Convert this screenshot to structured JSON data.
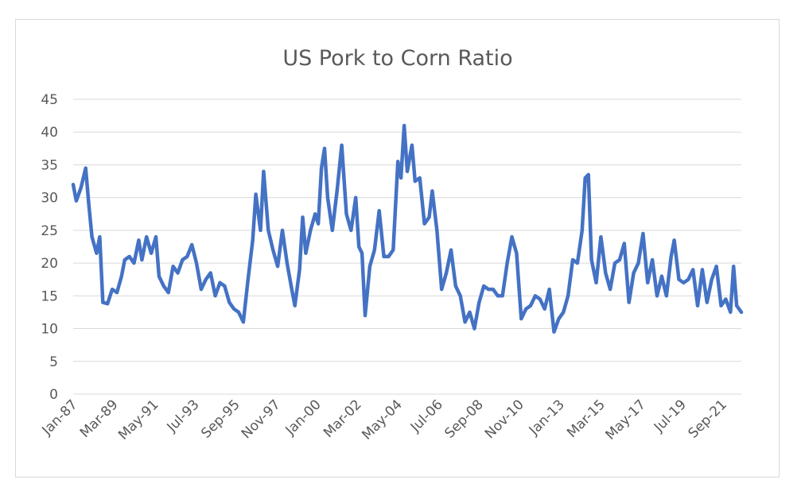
{
  "chart_data": {
    "type": "line",
    "title": "US Pork to Corn Ratio",
    "xlabel": "",
    "ylabel": "",
    "ylim": [
      0,
      45
    ],
    "yticks": [
      0,
      5,
      10,
      15,
      20,
      25,
      30,
      35,
      40,
      45
    ],
    "xticks": [
      "Jan-87",
      "Mar-89",
      "May-91",
      "Jul-93",
      "Sep-95",
      "Nov-97",
      "Jan-00",
      "Mar-02",
      "May-04",
      "Jul-06",
      "Sep-08",
      "Nov-10",
      "Jan-13",
      "Mar-15",
      "May-17",
      "Jul-19",
      "Sep-21"
    ],
    "grid": true,
    "legend": "none",
    "series_color": "#4472c4",
    "series": [
      {
        "name": "",
        "points": [
          [
            "1987-01",
            32.0
          ],
          [
            "1987-03",
            29.5
          ],
          [
            "1987-06",
            31.5
          ],
          [
            "1987-09",
            34.5
          ],
          [
            "1987-11",
            29.0
          ],
          [
            "1988-01",
            24.0
          ],
          [
            "1988-04",
            21.5
          ],
          [
            "1988-06",
            24.0
          ],
          [
            "1988-08",
            14.0
          ],
          [
            "1988-11",
            13.8
          ],
          [
            "1989-02",
            16.0
          ],
          [
            "1989-05",
            15.5
          ],
          [
            "1989-08",
            18.0
          ],
          [
            "1989-10",
            20.5
          ],
          [
            "1990-01",
            21.0
          ],
          [
            "1990-04",
            20.0
          ],
          [
            "1990-07",
            23.5
          ],
          [
            "1990-09",
            20.5
          ],
          [
            "1990-12",
            24.0
          ],
          [
            "1991-03",
            21.5
          ],
          [
            "1991-06",
            24.0
          ],
          [
            "1991-08",
            18.0
          ],
          [
            "1991-11",
            16.5
          ],
          [
            "1992-02",
            15.5
          ],
          [
            "1992-05",
            19.5
          ],
          [
            "1992-08",
            18.5
          ],
          [
            "1992-11",
            20.5
          ],
          [
            "1993-02",
            21.0
          ],
          [
            "1993-05",
            22.8
          ],
          [
            "1993-08",
            20.0
          ],
          [
            "1993-11",
            16.0
          ],
          [
            "1994-02",
            17.5
          ],
          [
            "1994-05",
            18.5
          ],
          [
            "1994-08",
            15.0
          ],
          [
            "1994-11",
            17.0
          ],
          [
            "1995-02",
            16.5
          ],
          [
            "1995-05",
            14.0
          ],
          [
            "1995-08",
            13.0
          ],
          [
            "1995-11",
            12.5
          ],
          [
            "1996-02",
            11.0
          ],
          [
            "1996-05",
            17.5
          ],
          [
            "1996-08",
            23.5
          ],
          [
            "1996-10",
            30.5
          ],
          [
            "1997-01",
            25.0
          ],
          [
            "1997-03",
            34.0
          ],
          [
            "1997-06",
            25.0
          ],
          [
            "1997-09",
            22.0
          ],
          [
            "1997-12",
            19.5
          ],
          [
            "1998-03",
            25.0
          ],
          [
            "1998-06",
            20.0
          ],
          [
            "1998-09",
            16.0
          ],
          [
            "1998-11",
            13.5
          ],
          [
            "1999-02",
            19.0
          ],
          [
            "1999-04",
            27.0
          ],
          [
            "1999-06",
            21.5
          ],
          [
            "1999-09",
            25.0
          ],
          [
            "1999-12",
            27.5
          ],
          [
            "2000-02",
            26.0
          ],
          [
            "2000-04",
            34.5
          ],
          [
            "2000-06",
            37.5
          ],
          [
            "2000-08",
            30.0
          ],
          [
            "2000-11",
            25.0
          ],
          [
            "2001-02",
            31.0
          ],
          [
            "2001-05",
            38.0
          ],
          [
            "2001-08",
            27.5
          ],
          [
            "2001-11",
            25.0
          ],
          [
            "2002-02",
            30.0
          ],
          [
            "2002-04",
            22.5
          ],
          [
            "2002-06",
            21.5
          ],
          [
            "2002-08",
            12.0
          ],
          [
            "2002-11",
            19.5
          ],
          [
            "2003-02",
            22.0
          ],
          [
            "2003-05",
            28.0
          ],
          [
            "2003-08",
            21.0
          ],
          [
            "2003-11",
            21.0
          ],
          [
            "2004-02",
            22.0
          ],
          [
            "2004-05",
            35.5
          ],
          [
            "2004-07",
            33.0
          ],
          [
            "2004-09",
            41.0
          ],
          [
            "2004-11",
            34.0
          ],
          [
            "2005-02",
            38.0
          ],
          [
            "2005-04",
            32.5
          ],
          [
            "2005-07",
            33.0
          ],
          [
            "2005-10",
            26.0
          ],
          [
            "2006-01",
            27.0
          ],
          [
            "2006-03",
            31.0
          ],
          [
            "2006-06",
            25.0
          ],
          [
            "2006-09",
            16.0
          ],
          [
            "2006-12",
            18.5
          ],
          [
            "2007-03",
            22.0
          ],
          [
            "2007-06",
            16.5
          ],
          [
            "2007-09",
            15.0
          ],
          [
            "2007-12",
            11.0
          ],
          [
            "2008-03",
            12.5
          ],
          [
            "2008-06",
            10.0
          ],
          [
            "2008-09",
            14.0
          ],
          [
            "2008-12",
            16.5
          ],
          [
            "2009-03",
            16.0
          ],
          [
            "2009-06",
            16.0
          ],
          [
            "2009-09",
            15.0
          ],
          [
            "2009-12",
            15.0
          ],
          [
            "2010-03",
            20.0
          ],
          [
            "2010-06",
            24.0
          ],
          [
            "2010-09",
            21.5
          ],
          [
            "2010-12",
            11.5
          ],
          [
            "2011-03",
            13.0
          ],
          [
            "2011-06",
            13.5
          ],
          [
            "2011-09",
            15.0
          ],
          [
            "2011-12",
            14.5
          ],
          [
            "2012-03",
            13.0
          ],
          [
            "2012-06",
            16.0
          ],
          [
            "2012-09",
            9.5
          ],
          [
            "2012-12",
            11.5
          ],
          [
            "2013-03",
            12.5
          ],
          [
            "2013-06",
            15.0
          ],
          [
            "2013-09",
            20.5
          ],
          [
            "2013-12",
            20.0
          ],
          [
            "2014-03",
            25.0
          ],
          [
            "2014-05",
            33.0
          ],
          [
            "2014-07",
            33.5
          ],
          [
            "2014-09",
            20.5
          ],
          [
            "2014-12",
            17.0
          ],
          [
            "2015-03",
            24.0
          ],
          [
            "2015-06",
            18.5
          ],
          [
            "2015-09",
            16.0
          ],
          [
            "2015-12",
            20.0
          ],
          [
            "2016-03",
            20.5
          ],
          [
            "2016-06",
            23.0
          ],
          [
            "2016-09",
            14.0
          ],
          [
            "2016-12",
            18.5
          ],
          [
            "2017-03",
            20.0
          ],
          [
            "2017-06",
            24.5
          ],
          [
            "2017-09",
            17.0
          ],
          [
            "2017-12",
            20.5
          ],
          [
            "2018-03",
            15.0
          ],
          [
            "2018-06",
            18.0
          ],
          [
            "2018-09",
            15.0
          ],
          [
            "2018-12",
            21.0
          ],
          [
            "2019-02",
            23.5
          ],
          [
            "2019-05",
            17.5
          ],
          [
            "2019-08",
            17.0
          ],
          [
            "2019-11",
            17.5
          ],
          [
            "2020-02",
            19.0
          ],
          [
            "2020-05",
            13.5
          ],
          [
            "2020-08",
            19.0
          ],
          [
            "2020-11",
            14.0
          ],
          [
            "2021-02",
            17.5
          ],
          [
            "2021-05",
            19.5
          ],
          [
            "2021-08",
            13.5
          ],
          [
            "2021-11",
            14.5
          ],
          [
            "2022-02",
            12.5
          ],
          [
            "2022-04",
            19.5
          ],
          [
            "2022-06",
            13.5
          ],
          [
            "2022-09",
            12.5
          ]
        ]
      }
    ]
  }
}
